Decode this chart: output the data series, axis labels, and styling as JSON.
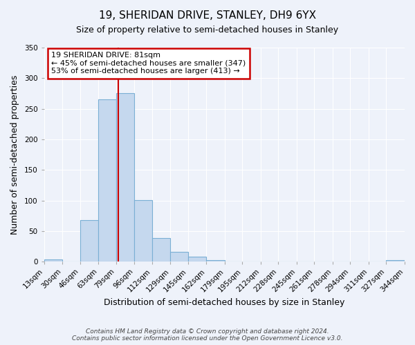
{
  "title": "19, SHERIDAN DRIVE, STANLEY, DH9 6YX",
  "subtitle": "Size of property relative to semi-detached houses in Stanley",
  "xlabel": "Distribution of semi-detached houses by size in Stanley",
  "ylabel": "Number of semi-detached properties",
  "bin_edges": [
    13,
    30,
    46,
    63,
    79,
    96,
    112,
    129,
    145,
    162,
    179,
    195,
    212,
    228,
    245,
    261,
    278,
    294,
    311,
    327,
    344
  ],
  "bar_vals": [
    4,
    0,
    68,
    265,
    275,
    101,
    39,
    16,
    8,
    2,
    0,
    0,
    0,
    0,
    0,
    0,
    0,
    0,
    0,
    2
  ],
  "bin_labels": [
    "13sqm",
    "30sqm",
    "46sqm",
    "63sqm",
    "79sqm",
    "96sqm",
    "112sqm",
    "129sqm",
    "145sqm",
    "162sqm",
    "179sqm",
    "195sqm",
    "212sqm",
    "228sqm",
    "245sqm",
    "261sqm",
    "278sqm",
    "294sqm",
    "311sqm",
    "327sqm",
    "344sqm"
  ],
  "bar_color": "#c5d8ee",
  "bar_edge_color": "#7aafd4",
  "vline_x": 81,
  "vline_color": "#cc0000",
  "annotation_title": "19 SHERIDAN DRIVE: 81sqm",
  "annotation_line1": "← 45% of semi-detached houses are smaller (347)",
  "annotation_line2": "53% of semi-detached houses are larger (413) →",
  "annotation_box_edgecolor": "#cc0000",
  "ylim": [
    0,
    350
  ],
  "yticks": [
    0,
    50,
    100,
    150,
    200,
    250,
    300,
    350
  ],
  "footer1": "Contains HM Land Registry data © Crown copyright and database right 2024.",
  "footer2": "Contains public sector information licensed under the Open Government Licence v3.0.",
  "bg_color": "#eef2fa",
  "grid_color": "#ffffff",
  "title_fontsize": 11,
  "subtitle_fontsize": 9,
  "axis_label_fontsize": 9,
  "tick_fontsize": 7.5,
  "footer_fontsize": 6.5
}
